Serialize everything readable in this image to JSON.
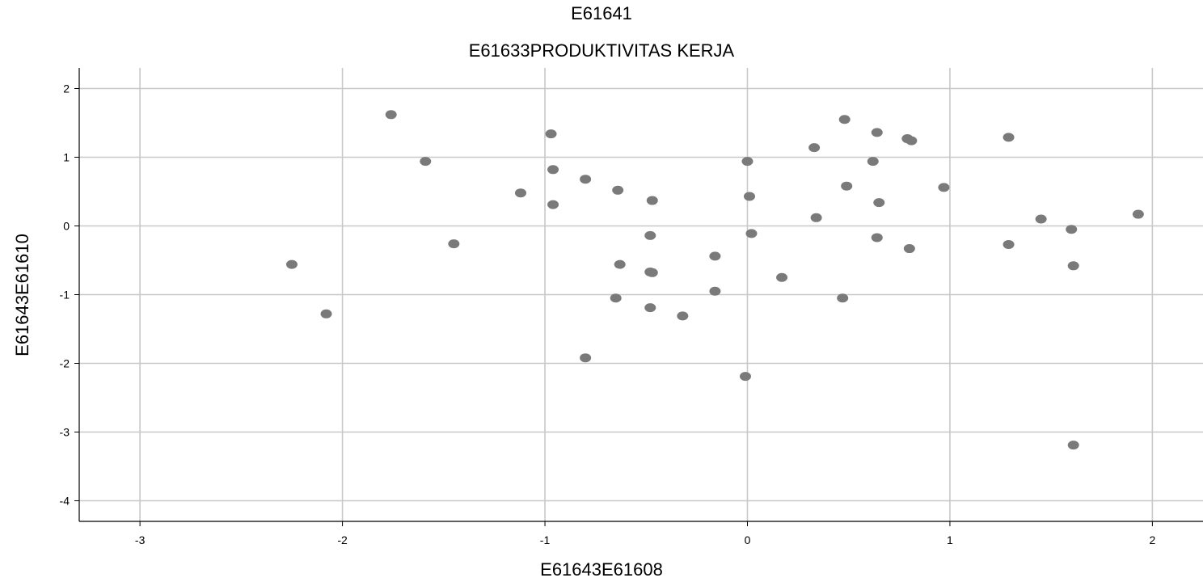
{
  "chart_data": {
    "type": "scatter",
    "title": "E61641",
    "subtitle": "E61633PRODUKTIVITAS KERJA",
    "xlabel": "E61643E61608",
    "ylabel": "E61643E61610",
    "xlim": [
      -3.3,
      2.25
    ],
    "ylim": [
      -4.3,
      2.3
    ],
    "xticks": [
      -3,
      -2,
      -1,
      0,
      1,
      2
    ],
    "yticks": [
      2,
      1,
      0,
      -1,
      -2,
      -3,
      -4
    ],
    "grid": true,
    "point_color": "#7a7a7a",
    "grid_color": "#c8c8c8",
    "points": [
      {
        "x": -1.76,
        "y": 1.62
      },
      {
        "x": -1.59,
        "y": 0.94
      },
      {
        "x": -1.45,
        "y": -0.26
      },
      {
        "x": -2.25,
        "y": -0.56
      },
      {
        "x": -2.08,
        "y": -1.28
      },
      {
        "x": -1.12,
        "y": 0.48
      },
      {
        "x": -0.97,
        "y": 1.34
      },
      {
        "x": -0.96,
        "y": 0.82
      },
      {
        "x": -0.96,
        "y": 0.31
      },
      {
        "x": -0.8,
        "y": 0.68
      },
      {
        "x": -0.64,
        "y": 0.52
      },
      {
        "x": -0.47,
        "y": 0.37
      },
      {
        "x": -0.48,
        "y": -0.14
      },
      {
        "x": -0.63,
        "y": -0.56
      },
      {
        "x": -0.48,
        "y": -0.67
      },
      {
        "x": -0.47,
        "y": -0.68
      },
      {
        "x": -0.65,
        "y": -1.05
      },
      {
        "x": -0.48,
        "y": -1.19
      },
      {
        "x": -0.32,
        "y": -1.31
      },
      {
        "x": -0.8,
        "y": -1.92
      },
      {
        "x": -0.16,
        "y": -0.44
      },
      {
        "x": -0.16,
        "y": -0.95
      },
      {
        "x": 0.0,
        "y": 0.94
      },
      {
        "x": 0.01,
        "y": 0.43
      },
      {
        "x": 0.02,
        "y": -0.11
      },
      {
        "x": 0.17,
        "y": -0.75
      },
      {
        "x": -0.01,
        "y": -2.19
      },
      {
        "x": 0.33,
        "y": 1.14
      },
      {
        "x": 0.34,
        "y": 0.12
      },
      {
        "x": 0.48,
        "y": 1.55
      },
      {
        "x": 0.49,
        "y": 0.58
      },
      {
        "x": 0.47,
        "y": -1.05
      },
      {
        "x": 0.64,
        "y": 1.36
      },
      {
        "x": 0.62,
        "y": 0.94
      },
      {
        "x": 0.65,
        "y": 0.34
      },
      {
        "x": 0.64,
        "y": -0.17
      },
      {
        "x": 0.79,
        "y": 1.27
      },
      {
        "x": 0.81,
        "y": 1.24
      },
      {
        "x": 0.8,
        "y": -0.33
      },
      {
        "x": 0.97,
        "y": 0.56
      },
      {
        "x": 1.29,
        "y": 1.29
      },
      {
        "x": 1.29,
        "y": -0.27
      },
      {
        "x": 1.45,
        "y": 0.1
      },
      {
        "x": 1.6,
        "y": -0.05
      },
      {
        "x": 1.61,
        "y": -0.58
      },
      {
        "x": 1.61,
        "y": -3.19
      },
      {
        "x": 1.93,
        "y": 0.17
      }
    ]
  }
}
